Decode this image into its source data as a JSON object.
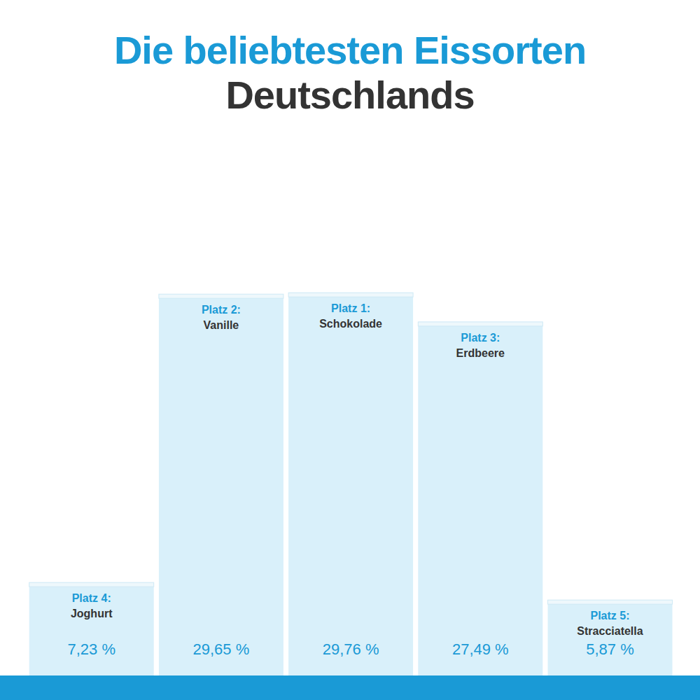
{
  "chart_data": {
    "type": "bar",
    "title": "Die beliebtesten Eissorten",
    "subtitle": "Deutschlands",
    "categories": [
      "Joghurt",
      "Vanille",
      "Schokolade",
      "Erdbeere",
      "Stracciatella"
    ],
    "rank_labels": [
      "Platz 4:",
      "Platz 2:",
      "Platz 1:",
      "Platz 3:",
      "Platz 5:"
    ],
    "values": [
      7.23,
      29.65,
      29.76,
      27.49,
      5.87
    ],
    "value_labels": [
      "7,23 %",
      "29,65 %",
      "29,76 %",
      "27,49 %",
      "5,87 %"
    ],
    "color": "#d9f0fa",
    "ylim": [
      0,
      40
    ],
    "data_labels": true,
    "tick_labels": false,
    "grid": false
  }
}
